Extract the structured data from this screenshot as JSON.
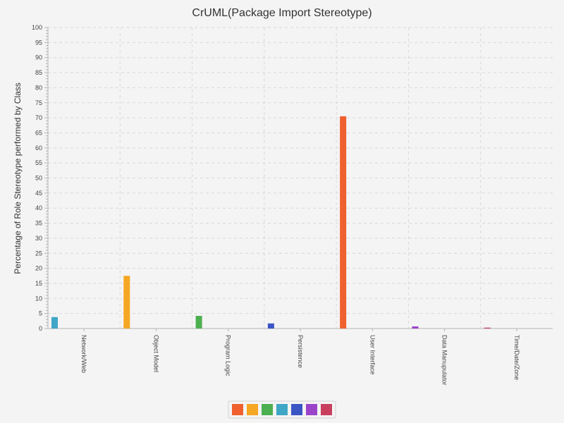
{
  "chart_data": {
    "type": "bar",
    "title": "CrUML(Package Import Stereotype)",
    "xlabel": "",
    "ylabel": "Percentage of Role Stereotype performed by Class",
    "ylim": [
      0,
      100
    ],
    "y_ticks": [
      "0",
      "5",
      "10",
      "15",
      "20",
      "25",
      "30",
      "35",
      "40",
      "45",
      "50",
      "55",
      "60",
      "65",
      "70",
      "75",
      "80",
      "85",
      "90",
      "95",
      "100"
    ],
    "grid": true,
    "legend_position": "bottom-center",
    "categories": [
      "Network/Web",
      "Object Model",
      "Program Logic",
      "Persistence",
      "User Interface",
      "Data Manupulator",
      "Time/Date/Zone"
    ],
    "series": [
      {
        "color": "#f0602e",
        "values": [
          0,
          0,
          0,
          0,
          70.5,
          0,
          0
        ]
      },
      {
        "color": "#f5a623",
        "values": [
          0,
          17.5,
          0,
          0,
          0,
          0,
          0
        ]
      },
      {
        "color": "#4caf50",
        "values": [
          0,
          0,
          4.2,
          0,
          0,
          0,
          0
        ]
      },
      {
        "color": "#3fa6c6",
        "values": [
          3.8,
          0,
          0,
          0,
          0,
          0,
          0
        ]
      },
      {
        "color": "#3a56c4",
        "values": [
          0,
          0,
          0,
          1.7,
          0,
          0,
          0
        ]
      },
      {
        "color": "#9b44c9",
        "values": [
          0,
          0,
          0,
          0,
          0,
          0.7,
          0
        ]
      },
      {
        "color": "#c8405e",
        "values": [
          0,
          0,
          0,
          0,
          0,
          0,
          0.3
        ]
      }
    ]
  }
}
